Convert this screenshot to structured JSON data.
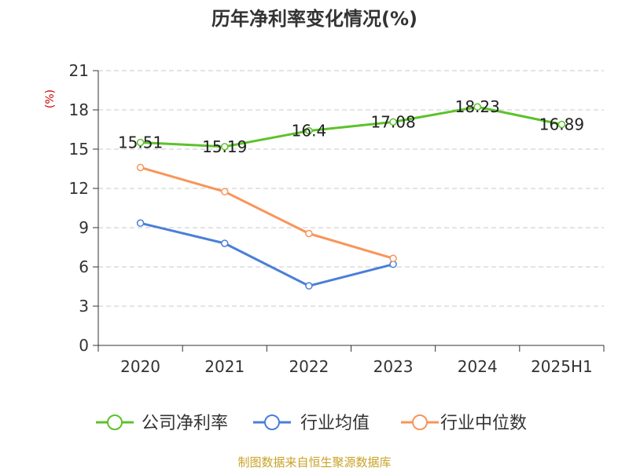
{
  "chart_data": {
    "type": "line",
    "title": "历年净利率变化情况(%)",
    "ylabel": "(%)",
    "categories": [
      "2020",
      "2021",
      "2022",
      "2023",
      "2024",
      "2025H1"
    ],
    "ylim": [
      0,
      21
    ],
    "yticks": [
      0,
      3,
      6,
      9,
      12,
      15,
      18,
      21
    ],
    "grid": true,
    "legend_position": "bottom",
    "source": "制图数据来自恒生聚源数据库",
    "series": [
      {
        "name": "公司净利率",
        "color": "#5cc22b",
        "values": [
          15.51,
          15.19,
          16.4,
          17.08,
          18.23,
          16.89
        ],
        "data_labels": [
          "15.51",
          "15.19",
          "16.4",
          "17.08",
          "18.23",
          "16.89"
        ]
      },
      {
        "name": "行业均值",
        "color": "#4a7fd9",
        "values": [
          9.35,
          7.8,
          4.55,
          6.2,
          null,
          null
        ],
        "data_labels": []
      },
      {
        "name": "行业中位数",
        "color": "#f89559",
        "values": [
          13.6,
          11.75,
          8.55,
          6.65,
          null,
          null
        ],
        "data_labels": []
      }
    ]
  }
}
